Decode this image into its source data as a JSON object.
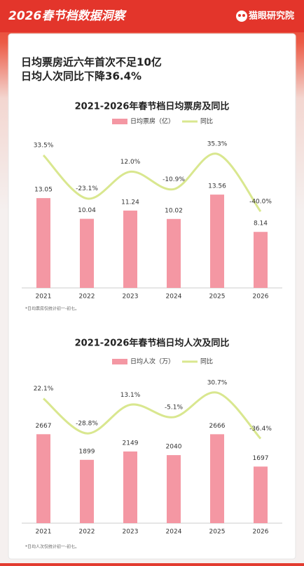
{
  "header": {
    "title": "2026春节档数据洞察",
    "brand": "猫眼研究院"
  },
  "headline": [
    "日均票房近六年首次不足10亿",
    "日均人次同比下降36.4%"
  ],
  "chart_data": [
    {
      "type": "bar",
      "title": "2021-2026年春节档日均票房及同比",
      "categories": [
        "2021",
        "2022",
        "2023",
        "2024",
        "2025",
        "2026"
      ],
      "series": [
        {
          "name": "日均票房（亿）",
          "color": "#f497a3",
          "values": [
            13.05,
            10.04,
            11.24,
            10.02,
            13.56,
            8.14
          ]
        },
        {
          "name": "同比",
          "color": "#d9e78f",
          "axis": "y2",
          "values": [
            33.5,
            -23.1,
            12.0,
            -10.9,
            35.3,
            -40.0
          ],
          "value_labels": [
            "33.5%",
            "-23.1%",
            "12.0%",
            "-10.9%",
            "35.3%",
            "-40.0%"
          ]
        }
      ],
      "ylim": [
        0,
        20
      ],
      "y2lim": [
        -140,
        40
      ],
      "note": "*日均票房仅统计初一-初七。"
    },
    {
      "type": "bar",
      "title": "2021-2026年春节档日均人次及同比",
      "categories": [
        "2021",
        "2022",
        "2023",
        "2024",
        "2025",
        "2026"
      ],
      "series": [
        {
          "name": "日均人次（万）",
          "color": "#f497a3",
          "values": [
            2667,
            1899,
            2149,
            2040,
            2666,
            1697
          ]
        },
        {
          "name": "同比",
          "color": "#d9e78f",
          "axis": "y2",
          "values": [
            22.1,
            -28.8,
            13.1,
            -5.1,
            30.7,
            -36.4
          ],
          "value_labels": [
            "22.1%",
            "-28.8%",
            "13.1%",
            "-5.1%",
            "30.7%",
            "-36.4%"
          ]
        }
      ],
      "ylim": [
        0,
        4000
      ],
      "y2lim": [
        -160,
        35
      ],
      "note": "*日均人次仅统计初一-初七。"
    }
  ]
}
